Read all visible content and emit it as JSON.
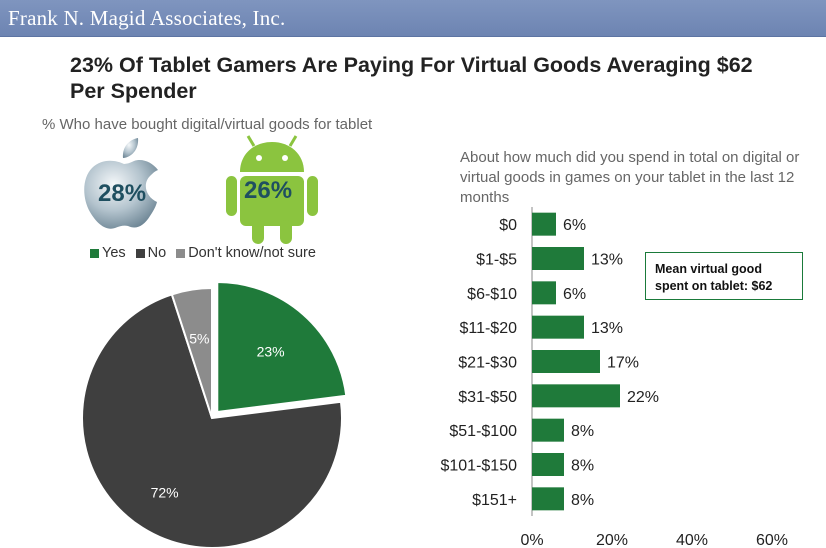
{
  "header": {
    "brand": "Frank N. Magid Associates, Inc."
  },
  "title": "23% Of Tablet Gamers Are Paying For Virtual Goods Averaging $62 Per Spender",
  "subtitle": "% Who have bought digital/virtual goods for tablet",
  "platforms": [
    {
      "icon": "apple-logo-icon",
      "value": "28%",
      "color": "#8fa6b5"
    },
    {
      "icon": "android-logo-icon",
      "value": "26%",
      "color": "#8bc43f"
    }
  ],
  "legend": [
    {
      "label": "Yes",
      "color": "#1f7a3a"
    },
    {
      "label": "No",
      "color": "#3f3f3f"
    },
    {
      "label": "Don't know/not sure",
      "color": "#8c8c8c"
    }
  ],
  "callout": {
    "line1": "Mean virtual good",
    "line2": "spent on tablet: $62"
  },
  "chart_data": [
    {
      "type": "pie",
      "labels": [
        "Yes",
        "No",
        "Don't know/not sure"
      ],
      "values": [
        23,
        72,
        5
      ],
      "value_labels": [
        "23%",
        "72%",
        "5%"
      ],
      "colors": [
        "#1f7a3a",
        "#3f3f3f",
        "#8c8c8c"
      ]
    },
    {
      "type": "bar",
      "orientation": "horizontal",
      "title": "About how much did you spend in total on digital or virtual goods in games on your tablet in the last 12 months",
      "categories": [
        "$0",
        "$1-$5",
        "$6-$10",
        "$11-$20",
        "$21-$30",
        "$31-$50",
        "$51-$100",
        "$101-$150",
        "$151+"
      ],
      "values": [
        6,
        13,
        6,
        13,
        17,
        22,
        8,
        8,
        8
      ],
      "value_labels": [
        "6%",
        "13%",
        "6%",
        "13%",
        "17%",
        "22%",
        "8%",
        "8%",
        "8%"
      ],
      "xlim": [
        0,
        60
      ],
      "xticks": [
        "0%",
        "20%",
        "40%",
        "60%"
      ],
      "color": "#1f7a3a",
      "grid": false
    }
  ]
}
